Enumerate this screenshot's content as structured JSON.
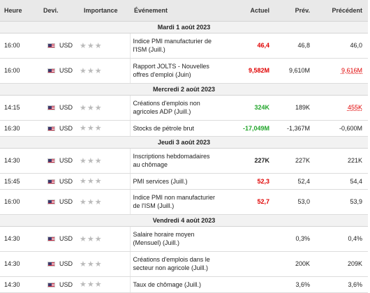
{
  "colors": {
    "negative": "#e00000",
    "positive": "#21a52a",
    "header_bg": "#e9e9e9",
    "star": "#bbbbbb"
  },
  "headers": {
    "time": "Heure",
    "currency": "Devi.",
    "importance": "Importance",
    "event": "Événement",
    "actual": "Actuel",
    "forecast": "Prév.",
    "previous": "Précédent"
  },
  "icons": {
    "flag": "us-flag-icon",
    "importance": "star-icon"
  },
  "stars_glyph": "★★★",
  "days": [
    {
      "date": "Mardi 1 août 2023",
      "events": [
        {
          "time": "16:00",
          "currency": "USD",
          "importance": 0,
          "event": "Indice PMI manufacturier de l'ISM (Juill.)",
          "actual": "46,4",
          "actual_color": "red",
          "forecast": "46,8",
          "previous": "46,0",
          "previous_revised": false
        },
        {
          "time": "16:00",
          "currency": "USD",
          "importance": 0,
          "event": "Rapport JOLTS - Nouvelles offres d'emploi (Juin)",
          "actual": "9,582M",
          "actual_color": "red",
          "forecast": "9,610M",
          "previous": "9,616M",
          "previous_revised": true
        }
      ]
    },
    {
      "date": "Mercredi 2 août 2023",
      "events": [
        {
          "time": "14:15",
          "currency": "USD",
          "importance": 0,
          "event": "Créations d'emplois non agricoles ADP (Juill.)",
          "actual": "324K",
          "actual_color": "green",
          "forecast": "189K",
          "previous": "455K",
          "previous_revised": true
        },
        {
          "time": "16:30",
          "currency": "USD",
          "importance": 0,
          "event": "Stocks de pétrole brut",
          "actual": "-17,049M",
          "actual_color": "green",
          "forecast": "-1,367M",
          "previous": "-0,600M",
          "previous_revised": false
        }
      ]
    },
    {
      "date": "Jeudi 3 août 2023",
      "events": [
        {
          "time": "14:30",
          "currency": "USD",
          "importance": 0,
          "event": "Inscriptions hebdomadaires au chômage",
          "actual": "227K",
          "actual_color": "black",
          "forecast": "227K",
          "previous": "221K",
          "previous_revised": false
        },
        {
          "time": "15:45",
          "currency": "USD",
          "importance": 0,
          "event": "PMI services (Juill.)",
          "actual": "52,3",
          "actual_color": "red",
          "forecast": "52,4",
          "previous": "54,4",
          "previous_revised": false
        },
        {
          "time": "16:00",
          "currency": "USD",
          "importance": 0,
          "event": "Indice PMI non manufacturier de l'ISM (Juill.)",
          "actual": "52,7",
          "actual_color": "red",
          "forecast": "53,0",
          "previous": "53,9",
          "previous_revised": false
        }
      ]
    },
    {
      "date": "Vendredi 4 août 2023",
      "events": [
        {
          "time": "14:30",
          "currency": "USD",
          "importance": 0,
          "event": "Salaire horaire moyen (Mensuel) (Juill.)",
          "actual": "",
          "actual_color": "black",
          "forecast": "0,3%",
          "previous": "0,4%",
          "previous_revised": false
        },
        {
          "time": "14:30",
          "currency": "USD",
          "importance": 0,
          "event": "Créations d'emplois dans le secteur non agricole (Juill.)",
          "actual": "",
          "actual_color": "black",
          "forecast": "200K",
          "previous": "209K",
          "previous_revised": false
        },
        {
          "time": "14:30",
          "currency": "USD",
          "importance": 0,
          "event": "Taux de chômage (Juill.)",
          "actual": "",
          "actual_color": "black",
          "forecast": "3,6%",
          "previous": "3,6%",
          "previous_revised": false
        }
      ]
    }
  ]
}
